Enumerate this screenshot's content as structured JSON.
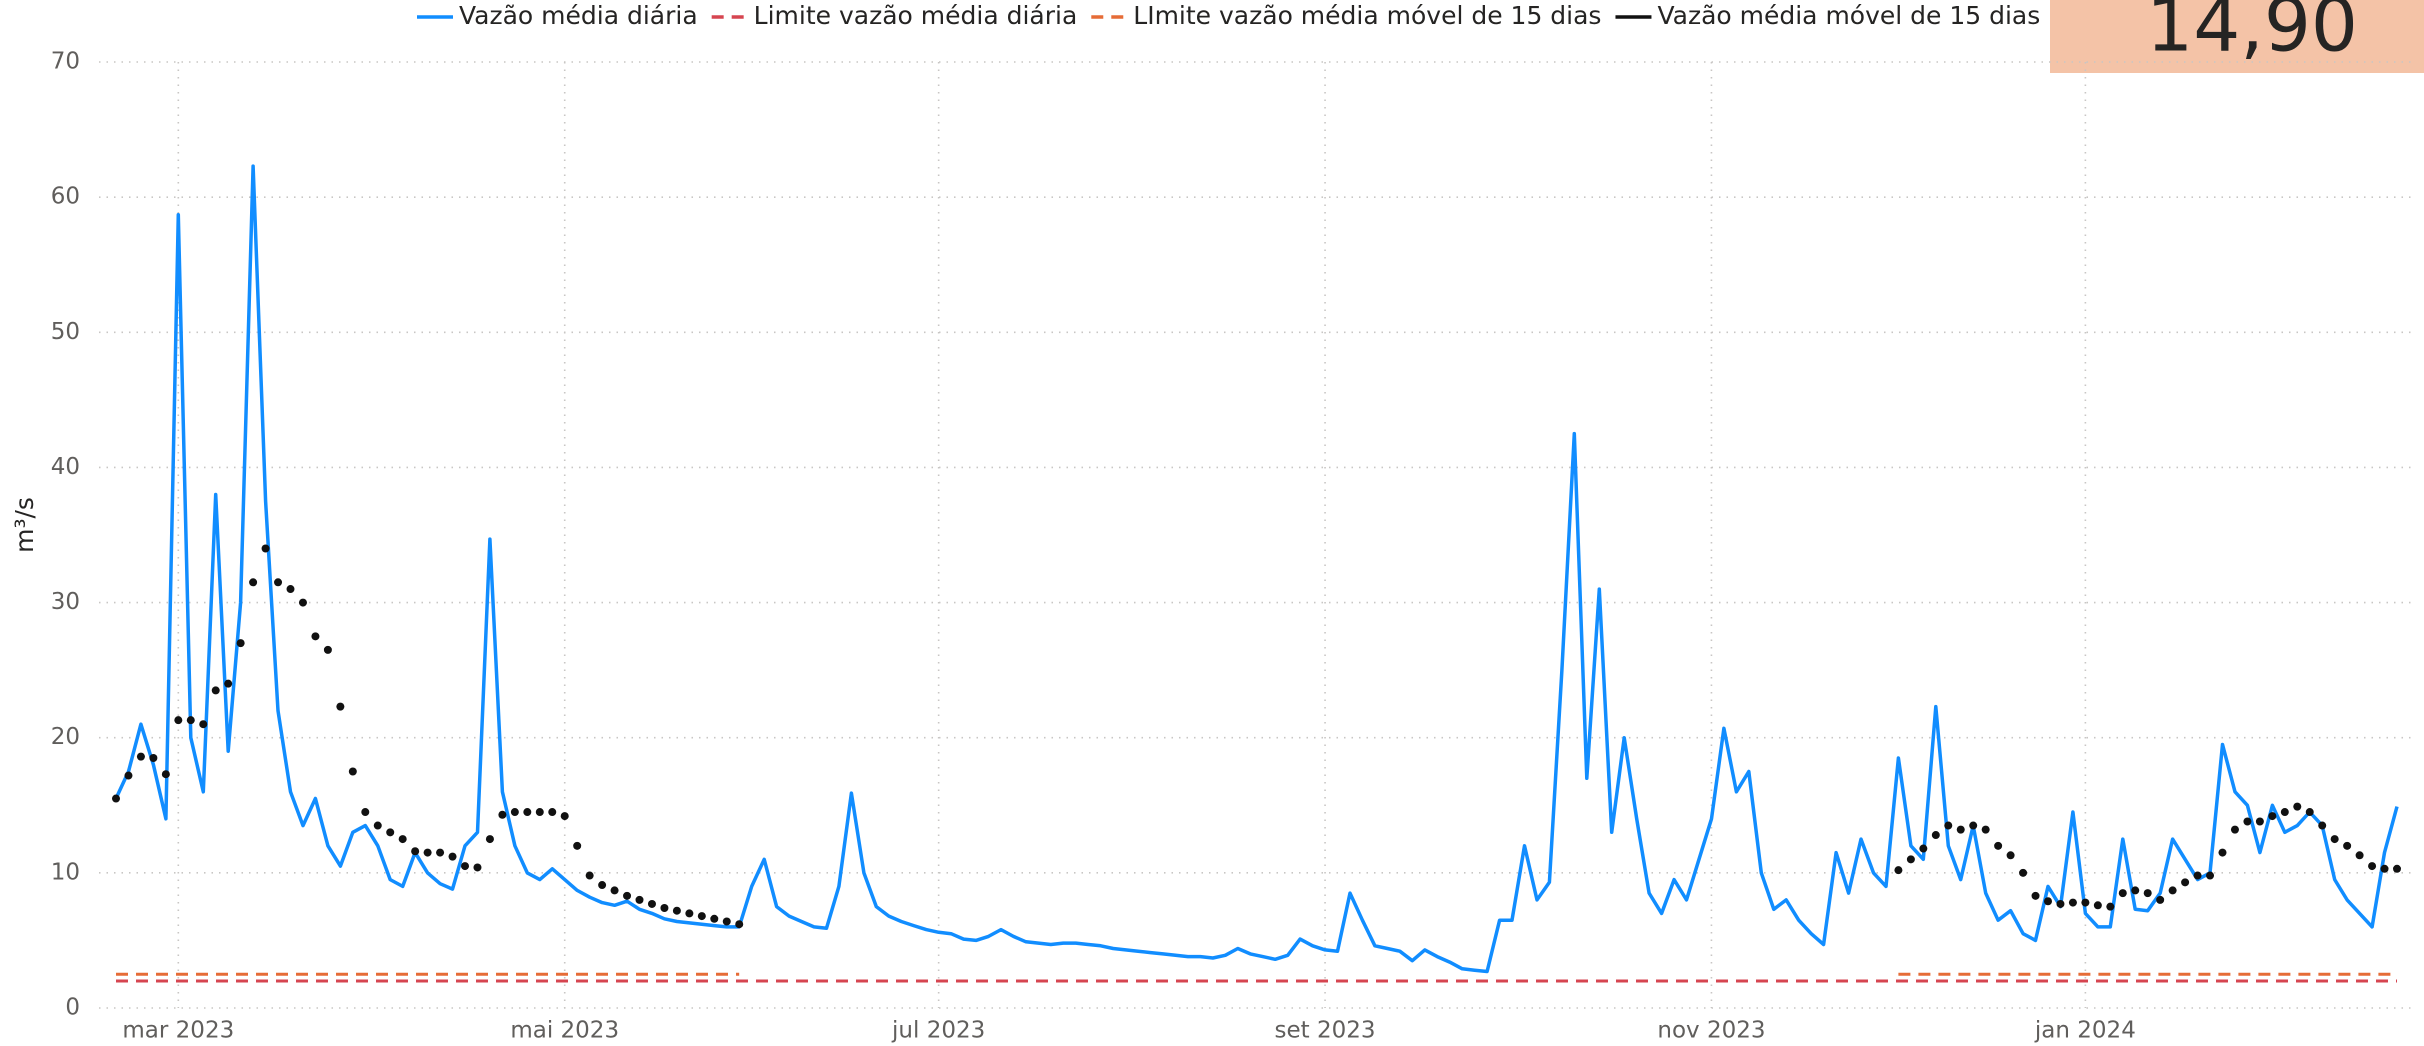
{
  "card": {
    "value": "14,90"
  },
  "chart_data": {
    "type": "line",
    "y_label": "m³/s",
    "ylim": [
      0,
      70
    ],
    "yticks": [
      0,
      10,
      20,
      30,
      40,
      50,
      60,
      70
    ],
    "grid": true,
    "categories": [
      null,
      null,
      null,
      null,
      null,
      "mar 2023",
      null,
      null,
      null,
      null,
      null,
      null,
      null,
      null,
      null,
      null,
      null,
      null,
      null,
      null,
      null,
      null,
      null,
      null,
      null,
      null,
      null,
      null,
      null,
      null,
      null,
      null,
      null,
      null,
      null,
      null,
      "mai 2023",
      null,
      null,
      null,
      null,
      null,
      null,
      null,
      null,
      null,
      null,
      null,
      null,
      null,
      null,
      null,
      null,
      null,
      null,
      null,
      null,
      null,
      null,
      null,
      null,
      null,
      null,
      null,
      null,
      null,
      "jul 2023",
      null,
      null,
      null,
      null,
      null,
      null,
      null,
      null,
      null,
      null,
      null,
      null,
      null,
      null,
      null,
      null,
      null,
      null,
      null,
      null,
      null,
      null,
      null,
      null,
      null,
      null,
      null,
      null,
      null,
      null,
      "set 2023",
      null,
      null,
      null,
      null,
      null,
      null,
      null,
      null,
      null,
      null,
      null,
      null,
      null,
      null,
      null,
      null,
      null,
      null,
      null,
      null,
      null,
      null,
      null,
      null,
      null,
      null,
      null,
      null,
      null,
      null,
      "nov 2023",
      null,
      null,
      null,
      null,
      null,
      null,
      null,
      null,
      null,
      null,
      null,
      null,
      null,
      null,
      null,
      null,
      null,
      null,
      null,
      null,
      null,
      null,
      null,
      null,
      null,
      null,
      null,
      null,
      null,
      "jan 2024",
      null,
      null,
      null,
      null,
      null,
      null,
      null,
      null,
      null,
      null,
      null,
      null,
      null,
      null,
      null,
      null,
      null,
      null,
      null,
      null,
      null,
      null,
      null,
      null,
      null
    ],
    "series": [
      {
        "name": "Vazão média diária",
        "color": "#118DFF",
        "style": "line",
        "values": [
          15.5,
          17.5,
          21,
          18,
          14,
          58.7,
          20,
          16,
          38,
          19,
          30,
          62.3,
          37.5,
          22,
          16,
          13.5,
          15.5,
          12,
          10.5,
          13,
          13.5,
          12,
          9.5,
          9,
          11.5,
          10,
          9.2,
          8.8,
          12,
          13,
          34.7,
          16,
          12,
          10,
          9.5,
          10.3,
          9.5,
          8.7,
          8.2,
          7.8,
          7.6,
          7.9,
          7.3,
          7,
          6.6,
          6.4,
          6.3,
          6.2,
          6.1,
          6,
          6,
          9,
          11,
          7.5,
          6.8,
          6.4,
          6,
          5.9,
          9,
          15.9,
          10,
          7.5,
          6.8,
          6.4,
          6.1,
          5.8,
          5.6,
          5.5,
          5.1,
          5,
          5.3,
          5.8,
          5.3,
          4.9,
          4.8,
          4.7,
          4.8,
          4.8,
          4.7,
          4.6,
          4.4,
          4.3,
          4.2,
          4.1,
          4,
          3.9,
          3.8,
          3.8,
          3.7,
          3.9,
          4.4,
          4,
          3.8,
          3.6,
          3.9,
          5.1,
          4.6,
          4.3,
          4.2,
          8.5,
          6.5,
          4.6,
          4.4,
          4.2,
          3.5,
          4.3,
          3.8,
          3.4,
          2.9,
          2.8,
          2.7,
          6.5,
          6.5,
          12,
          8,
          9.3,
          25,
          42.5,
          17,
          31,
          13,
          20,
          14,
          8.5,
          7,
          9.5,
          8,
          11,
          14,
          20.7,
          16,
          17.5,
          10,
          7.3,
          8,
          6.5,
          5.5,
          4.7,
          11.5,
          8.5,
          12.5,
          10,
          9,
          18.5,
          12,
          11,
          22.3,
          12,
          9.5,
          13.5,
          8.5,
          6.5,
          7.2,
          5.5,
          5,
          9,
          7.5,
          14.5,
          7,
          6,
          6,
          12.5,
          7.3,
          7.2,
          8.5,
          12.5,
          11,
          9.5,
          10,
          19.5,
          16,
          15,
          11.5,
          15,
          13,
          13.5,
          14.5,
          13.5,
          9.5,
          8,
          7,
          6,
          11.5,
          14.9
        ]
      },
      {
        "name": "Limite vazão média diária",
        "color": "#D64550",
        "style": "dashed",
        "values": [
          2,
          2,
          2,
          2,
          2,
          2,
          2,
          2,
          2,
          2,
          2,
          2,
          2,
          2,
          2,
          2,
          2,
          2,
          2,
          2,
          2,
          2,
          2,
          2,
          2,
          2,
          2,
          2,
          2,
          2,
          2,
          2,
          2,
          2,
          2,
          2,
          2,
          2,
          2,
          2,
          2,
          2,
          2,
          2,
          2,
          2,
          2,
          2,
          2,
          2,
          2,
          2,
          2,
          2,
          2,
          2,
          2,
          2,
          2,
          2,
          2,
          2,
          2,
          2,
          2,
          2,
          2,
          2,
          2,
          2,
          2,
          2,
          2,
          2,
          2,
          2,
          2,
          2,
          2,
          2,
          2,
          2,
          2,
          2,
          2,
          2,
          2,
          2,
          2,
          2,
          2,
          2,
          2,
          2,
          2,
          2,
          2,
          2,
          2,
          2,
          2,
          2,
          2,
          2,
          2,
          2,
          2,
          2,
          2,
          2,
          2,
          2,
          2,
          2,
          2,
          2,
          2,
          2,
          2,
          2,
          2,
          2,
          2,
          2,
          2,
          2,
          2,
          2,
          2,
          2,
          2,
          2,
          2,
          2,
          2,
          2,
          2,
          2,
          2,
          2,
          2,
          2,
          2,
          2,
          2,
          2,
          2,
          2,
          2,
          2,
          2,
          2,
          2,
          2,
          2,
          2,
          2,
          2,
          2,
          2,
          2,
          2,
          2,
          2,
          2,
          2,
          2,
          2,
          2,
          2,
          2,
          2,
          2,
          2,
          2,
          2,
          2,
          2,
          2,
          2,
          2,
          2,
          2,
          2
        ]
      },
      {
        "name": "LImite vazão média móvel de 15 dias",
        "color": "#E66C37",
        "style": "dashed",
        "values": [
          2.5,
          2.5,
          2.5,
          2.5,
          2.5,
          2.5,
          2.5,
          2.5,
          2.5,
          2.5,
          2.5,
          2.5,
          2.5,
          2.5,
          2.5,
          2.5,
          2.5,
          2.5,
          2.5,
          2.5,
          2.5,
          2.5,
          2.5,
          2.5,
          2.5,
          2.5,
          2.5,
          2.5,
          2.5,
          2.5,
          2.5,
          2.5,
          2.5,
          2.5,
          2.5,
          2.5,
          2.5,
          2.5,
          2.5,
          2.5,
          2.5,
          2.5,
          2.5,
          2.5,
          2.5,
          2.5,
          2.5,
          2.5,
          2.5,
          2.5,
          2.5,
          null,
          null,
          null,
          null,
          null,
          null,
          null,
          null,
          null,
          null,
          null,
          null,
          null,
          null,
          null,
          null,
          null,
          null,
          null,
          null,
          null,
          null,
          null,
          null,
          null,
          null,
          null,
          null,
          null,
          null,
          null,
          null,
          null,
          null,
          null,
          null,
          null,
          null,
          null,
          null,
          null,
          null,
          null,
          null,
          null,
          null,
          null,
          null,
          null,
          null,
          null,
          null,
          null,
          null,
          null,
          null,
          null,
          null,
          null,
          null,
          null,
          null,
          null,
          null,
          null,
          null,
          null,
          null,
          null,
          null,
          null,
          null,
          null,
          null,
          null,
          null,
          null,
          null,
          null,
          null,
          null,
          null,
          null,
          null,
          null,
          null,
          null,
          null,
          null,
          null,
          null,
          null,
          2.5,
          2.5,
          2.5,
          2.5,
          2.5,
          2.5,
          2.5,
          2.5,
          2.5,
          2.5,
          2.5,
          2.5,
          2.5,
          2.5,
          2.5,
          2.5,
          2.5,
          2.5,
          2.5,
          2.5,
          2.5,
          2.5,
          2.5,
          2.5,
          2.5,
          2.5,
          2.5,
          2.5,
          2.5,
          2.5,
          2.5,
          2.5,
          2.5,
          2.5,
          2.5,
          2.5,
          2.5,
          2.5,
          2.5,
          2.5,
          2.5
        ]
      },
      {
        "name": "Vazão média móvel de 15 dias",
        "color": "#111111",
        "style": "dots",
        "values": [
          15.5,
          17.2,
          18.6,
          18.5,
          17.3,
          21.3,
          21.3,
          21,
          23.5,
          24,
          27,
          31.5,
          34,
          31.5,
          31,
          30,
          27.5,
          26.5,
          22.3,
          17.5,
          14.5,
          13.5,
          13,
          12.5,
          11.6,
          11.5,
          11.5,
          11.2,
          10.5,
          10.4,
          12.5,
          14.3,
          14.5,
          14.5,
          14.5,
          14.5,
          14.2,
          12,
          9.8,
          9.1,
          8.7,
          8.3,
          8,
          7.7,
          7.4,
          7.2,
          7,
          6.8,
          6.6,
          6.4,
          6.2,
          null,
          null,
          null,
          null,
          null,
          null,
          null,
          null,
          null,
          null,
          null,
          null,
          null,
          null,
          null,
          null,
          null,
          null,
          null,
          null,
          null,
          null,
          null,
          null,
          null,
          null,
          null,
          null,
          null,
          null,
          null,
          null,
          null,
          null,
          null,
          null,
          null,
          null,
          null,
          null,
          null,
          null,
          null,
          null,
          null,
          null,
          null,
          null,
          null,
          null,
          null,
          null,
          null,
          null,
          null,
          null,
          null,
          null,
          null,
          null,
          null,
          null,
          null,
          null,
          null,
          null,
          null,
          null,
          null,
          null,
          null,
          null,
          null,
          null,
          null,
          null,
          null,
          null,
          null,
          null,
          null,
          null,
          null,
          null,
          null,
          null,
          null,
          null,
          null,
          null,
          null,
          null,
          10.2,
          11,
          11.8,
          12.8,
          13.5,
          13.2,
          13.5,
          13.2,
          12,
          11.3,
          10,
          8.3,
          7.9,
          7.7,
          7.8,
          7.8,
          7.6,
          7.5,
          8.5,
          8.7,
          8.5,
          8,
          8.7,
          9.3,
          9.8,
          9.8,
          11.5,
          13.2,
          13.8,
          13.8,
          14.2,
          14.5,
          14.9,
          14.5,
          13.5,
          12.5,
          12,
          11.3,
          10.5,
          10.3,
          10.3
        ]
      }
    ]
  }
}
